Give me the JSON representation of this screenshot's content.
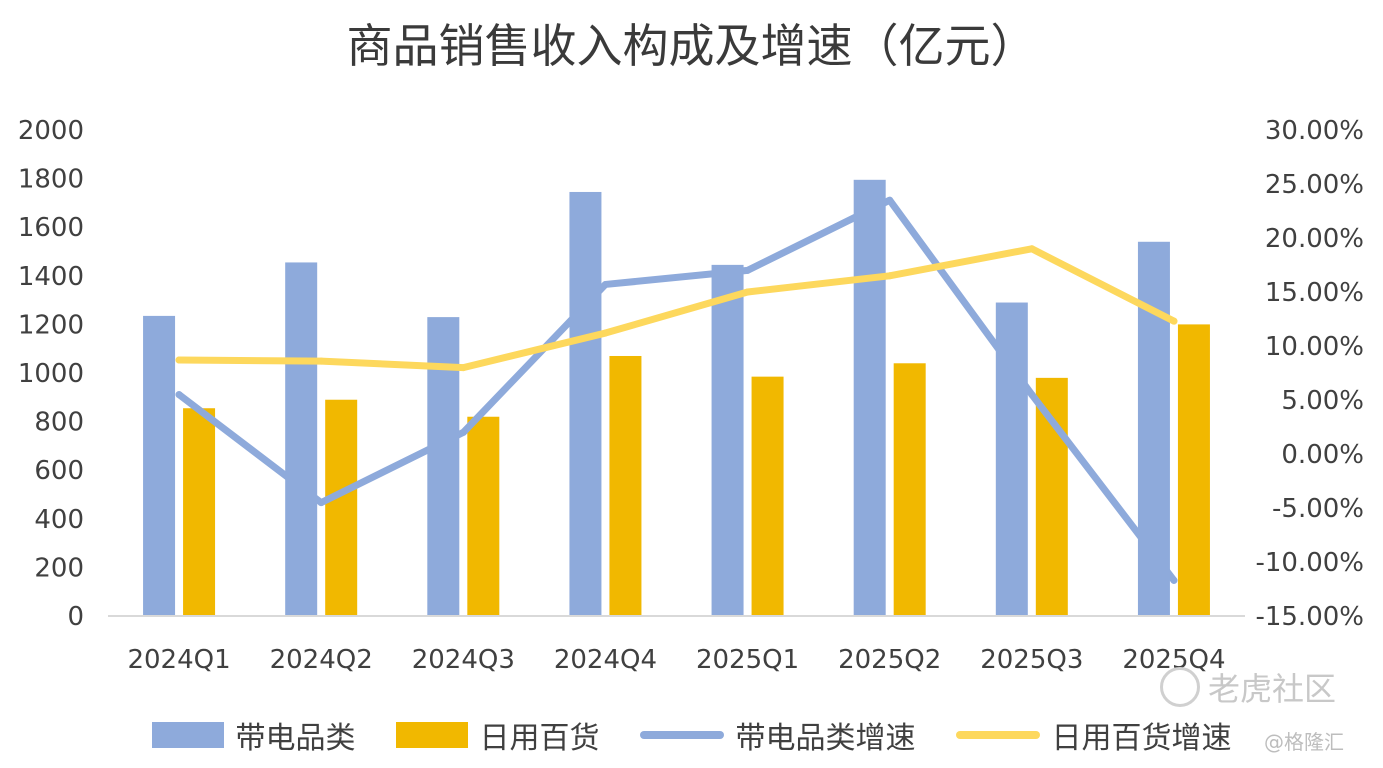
{
  "chart_data": {
    "type": "bar",
    "title": "商品销售收入构成及增速（亿元）",
    "categories": [
      "2024Q1",
      "2024Q2",
      "2024Q3",
      "2024Q4",
      "2025Q1",
      "2025Q2",
      "2025Q3",
      "2025Q4"
    ],
    "series": [
      {
        "name": "带电品类",
        "type": "bar",
        "axis": "left",
        "color": "#8eaadb",
        "values": [
          1235,
          1455,
          1230,
          1745,
          1445,
          1795,
          1290,
          1540
        ]
      },
      {
        "name": "日用百货",
        "type": "bar",
        "axis": "left",
        "color": "#f1b800",
        "values": [
          855,
          890,
          820,
          1070,
          985,
          1040,
          980,
          1200
        ]
      },
      {
        "name": "带电品类增速",
        "type": "line",
        "axis": "right",
        "color": "#8eaadb",
        "values": [
          5.5,
          -4.5,
          2.0,
          15.7,
          17.0,
          23.5,
          5.5,
          -11.7
        ]
      },
      {
        "name": "日用百货增速",
        "type": "line",
        "axis": "right",
        "color": "#fdd85d",
        "values": [
          8.7,
          8.6,
          8.0,
          11.2,
          15.0,
          16.5,
          19.0,
          12.3
        ]
      }
    ],
    "y_left": {
      "min": 0,
      "max": 2000,
      "step": 200,
      "ticks": [
        "0",
        "200",
        "400",
        "600",
        "800",
        "1000",
        "1200",
        "1400",
        "1600",
        "1800",
        "2000"
      ]
    },
    "y_right": {
      "min": -15,
      "max": 30,
      "step": 5,
      "ticks": [
        "-15.00%",
        "-10.00%",
        "-5.00%",
        "0.00%",
        "5.00%",
        "10.00%",
        "15.00%",
        "20.00%",
        "25.00%",
        "30.00%"
      ]
    },
    "grid": false,
    "legend_position": "bottom"
  },
  "watermarks": {
    "tiger": "老虎社区",
    "gelonghui": "@格隆汇"
  },
  "colors": {
    "axis_line": "#d9d9d9",
    "text": "#404040"
  }
}
